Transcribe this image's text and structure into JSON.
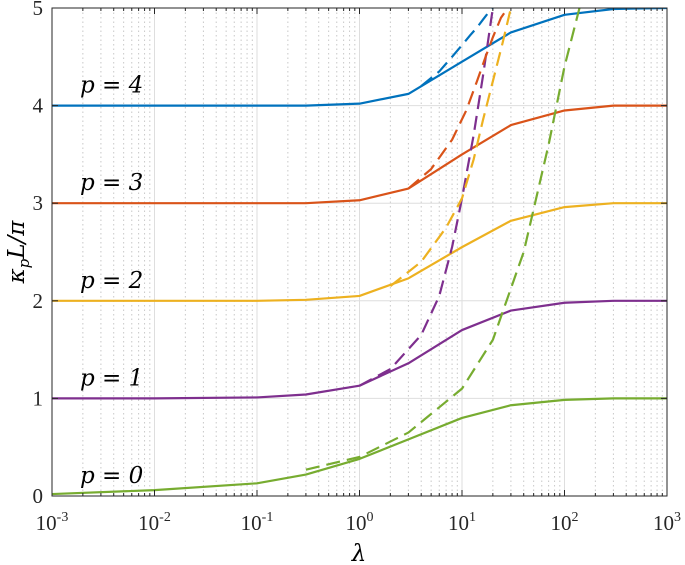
{
  "chart_data": {
    "type": "line",
    "title": "",
    "xlabel": "λ",
    "ylabel": "κ_p L/π",
    "xscale": "log",
    "xlim": [
      0.001,
      1000
    ],
    "ylim": [
      0,
      5
    ],
    "grid": true,
    "x_ticks": [
      {
        "base": "10",
        "exp": "-3",
        "value": 0.001
      },
      {
        "base": "10",
        "exp": "-2",
        "value": 0.01
      },
      {
        "base": "10",
        "exp": "-1",
        "value": 0.1
      },
      {
        "base": "10",
        "exp": "0",
        "value": 1
      },
      {
        "base": "10",
        "exp": "1",
        "value": 10
      },
      {
        "base": "10",
        "exp": "2",
        "value": 100
      },
      {
        "base": "10",
        "exp": "3",
        "value": 1000
      }
    ],
    "y_ticks": [
      "0",
      "1",
      "2",
      "3",
      "4",
      "5"
    ],
    "curve_labels": [
      {
        "text": "p = 4",
        "p": 4
      },
      {
        "text": "p = 3",
        "p": 3
      },
      {
        "text": "p = 2",
        "p": 2
      },
      {
        "text": "p = 1",
        "p": 1
      },
      {
        "text": "p = 0",
        "p": 0
      }
    ],
    "series": [
      {
        "p": 0,
        "color": "#77AC30",
        "style": "solid",
        "x": [
          0.001,
          0.01,
          0.1,
          0.3,
          1,
          3,
          10,
          30,
          100,
          300,
          1000
        ],
        "y": [
          0.02,
          0.06,
          0.13,
          0.22,
          0.38,
          0.58,
          0.8,
          0.93,
          0.985,
          1.0,
          1.0
        ]
      },
      {
        "p": 0,
        "color": "#77AC30",
        "style": "dashed",
        "x": [
          0.3,
          1,
          3,
          10,
          20,
          40,
          70,
          100,
          140
        ],
        "y": [
          0.27,
          0.4,
          0.65,
          1.1,
          1.6,
          2.5,
          3.6,
          4.4,
          5.0
        ]
      },
      {
        "p": 1,
        "color": "#7E2F8E",
        "style": "solid",
        "x": [
          0.001,
          0.01,
          0.1,
          0.3,
          1,
          3,
          10,
          30,
          100,
          300,
          1000
        ],
        "y": [
          1.0,
          1.0,
          1.01,
          1.04,
          1.13,
          1.36,
          1.7,
          1.9,
          1.98,
          2.0,
          2.0
        ]
      },
      {
        "p": 1,
        "color": "#7E2F8E",
        "style": "dashed",
        "x": [
          1,
          2,
          4,
          6,
          8,
          10,
          13,
          16,
          20
        ],
        "y": [
          1.13,
          1.3,
          1.65,
          2.05,
          2.55,
          3.05,
          3.7,
          4.3,
          5.0
        ]
      },
      {
        "p": 2,
        "color": "#EDB120",
        "style": "solid",
        "x": [
          0.001,
          0.01,
          0.1,
          0.3,
          1,
          3,
          10,
          30,
          100,
          300,
          1000
        ],
        "y": [
          2.0,
          2.0,
          2.0,
          2.01,
          2.05,
          2.23,
          2.55,
          2.82,
          2.96,
          3.0,
          3.0
        ]
      },
      {
        "p": 2,
        "color": "#EDB120",
        "style": "dashed",
        "x": [
          2,
          4,
          7,
          10,
          13,
          16,
          20,
          25,
          30
        ],
        "y": [
          2.15,
          2.4,
          2.75,
          3.05,
          3.45,
          3.85,
          4.25,
          4.65,
          5.0
        ]
      },
      {
        "p": 3,
        "color": "#D95319",
        "style": "solid",
        "x": [
          0.001,
          0.01,
          0.1,
          0.3,
          1,
          3,
          10,
          30,
          100,
          300,
          1000
        ],
        "y": [
          3.0,
          3.0,
          3.0,
          3.0,
          3.03,
          3.15,
          3.5,
          3.8,
          3.95,
          4.0,
          4.0
        ]
      },
      {
        "p": 3,
        "color": "#D95319",
        "style": "dashed",
        "x": [
          3,
          5,
          8,
          11,
          14,
          17,
          20,
          24,
          28
        ],
        "y": [
          3.15,
          3.35,
          3.65,
          3.95,
          4.25,
          4.5,
          4.7,
          4.9,
          5.0
        ]
      },
      {
        "p": 4,
        "color": "#0072BD",
        "style": "solid",
        "x": [
          0.001,
          0.01,
          0.1,
          0.3,
          1,
          3,
          10,
          30,
          100,
          300,
          1000
        ],
        "y": [
          4.0,
          4.0,
          4.0,
          4.0,
          4.02,
          4.12,
          4.45,
          4.75,
          4.93,
          4.99,
          5.0
        ]
      },
      {
        "p": 4,
        "color": "#0072BD",
        "style": "dashed",
        "x": [
          4,
          6,
          8,
          10,
          12,
          14,
          16,
          18,
          20
        ],
        "y": [
          4.2,
          4.35,
          4.5,
          4.62,
          4.72,
          4.8,
          4.88,
          4.95,
          5.0
        ]
      }
    ]
  }
}
